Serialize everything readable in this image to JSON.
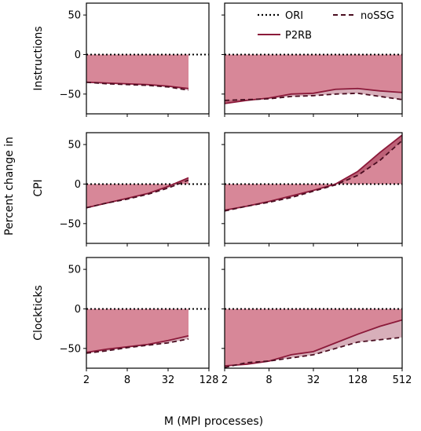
{
  "chart_data": {
    "type": "area",
    "xlabel": "M (MPI processes)",
    "ylabel": "Percent change in",
    "xscale": "log2",
    "ylim": [
      -75,
      65
    ],
    "yticks": [
      50,
      0,
      -50
    ],
    "yticks_labels": [
      "50",
      "0",
      "−50"
    ],
    "legend": {
      "placement": "top-right",
      "entries": [
        "ORI",
        "noSSG",
        "P2RB"
      ]
    },
    "colors": {
      "p2rb": "#8b1a3a",
      "fill": "#c95f76",
      "fill_light": "#d9869a",
      "ori": "#000000"
    },
    "columns": [
      {
        "xlim": [
          2,
          128
        ],
        "xticks": [
          2,
          8,
          32,
          128
        ],
        "xtick_labels": [
          "2",
          "8",
          "32",
          "128"
        ]
      },
      {
        "xlim": [
          2,
          512
        ],
        "xticks": [
          2,
          8,
          32,
          128,
          512
        ],
        "xtick_labels": [
          "2",
          "8",
          "32",
          "128",
          "512"
        ]
      }
    ],
    "rows": [
      "Instructions",
      "CPI",
      "Clockticks"
    ],
    "panels": [
      {
        "row": 0,
        "col": 0,
        "x": [
          2,
          4,
          8,
          16,
          32,
          64
        ],
        "series": [
          {
            "name": "ORI",
            "values": [
              0,
              0,
              0,
              0,
              0,
              0
            ]
          },
          {
            "name": "P2RB",
            "values": [
              -35,
              -36,
              -37,
              -38,
              -40,
              -43
            ]
          },
          {
            "name": "noSSG",
            "values": [
              -35,
              -37,
              -38,
              -39,
              -41,
              -45
            ]
          }
        ]
      },
      {
        "row": 0,
        "col": 1,
        "x": [
          2,
          4,
          8,
          16,
          32,
          64,
          128,
          256,
          512
        ],
        "series": [
          {
            "name": "ORI",
            "values": [
              0,
              0,
              0,
              0,
              0,
              0,
              0,
              0,
              0
            ]
          },
          {
            "name": "P2RB",
            "values": [
              -62,
              -58,
              -55,
              -50,
              -49,
              -44,
              -43,
              -46,
              -48
            ]
          },
          {
            "name": "noSSG",
            "values": [
              -58,
              -57,
              -56,
              -53,
              -52,
              -50,
              -49,
              -53,
              -57
            ]
          }
        ]
      },
      {
        "row": 1,
        "col": 0,
        "x": [
          2,
          4,
          8,
          16,
          32,
          64
        ],
        "series": [
          {
            "name": "ORI",
            "values": [
              0,
              0,
              0,
              0,
              0,
              0
            ]
          },
          {
            "name": "P2RB",
            "values": [
              -30,
              -24,
              -18,
              -12,
              -3,
              8
            ]
          },
          {
            "name": "noSSG",
            "values": [
              -30,
              -24,
              -19,
              -13,
              -5,
              5
            ]
          }
        ]
      },
      {
        "row": 1,
        "col": 1,
        "x": [
          2,
          4,
          8,
          16,
          32,
          64,
          128,
          256,
          512
        ],
        "series": [
          {
            "name": "ORI",
            "values": [
              0,
              0,
              0,
              0,
              0,
              0,
              0,
              0,
              0
            ]
          },
          {
            "name": "P2RB",
            "values": [
              -33,
              -28,
              -22,
              -15,
              -8,
              0,
              16,
              40,
              62
            ]
          },
          {
            "name": "noSSG",
            "values": [
              -34,
              -28,
              -23,
              -17,
              -9,
              -1,
              11,
              30,
              55
            ]
          }
        ]
      },
      {
        "row": 2,
        "col": 0,
        "x": [
          2,
          4,
          8,
          16,
          32,
          64
        ],
        "series": [
          {
            "name": "ORI",
            "values": [
              0,
              0,
              0,
              0,
              0,
              0
            ]
          },
          {
            "name": "P2RB",
            "values": [
              -55,
              -51,
              -48,
              -45,
              -40,
              -34
            ]
          },
          {
            "name": "noSSG",
            "values": [
              -56,
              -53,
              -49,
              -46,
              -43,
              -38
            ]
          }
        ]
      },
      {
        "row": 2,
        "col": 1,
        "x": [
          2,
          4,
          8,
          16,
          32,
          64,
          128,
          256,
          512
        ],
        "series": [
          {
            "name": "ORI",
            "values": [
              0,
              0,
              0,
              0,
              0,
              0,
              0,
              0,
              0
            ]
          },
          {
            "name": "P2RB",
            "values": [
              -72,
              -70,
              -66,
              -58,
              -54,
              -43,
              -32,
              -22,
              -14
            ]
          },
          {
            "name": "noSSG",
            "values": [
              -74,
              -68,
              -66,
              -62,
              -58,
              -50,
              -42,
              -39,
              -36
            ]
          }
        ]
      }
    ]
  }
}
